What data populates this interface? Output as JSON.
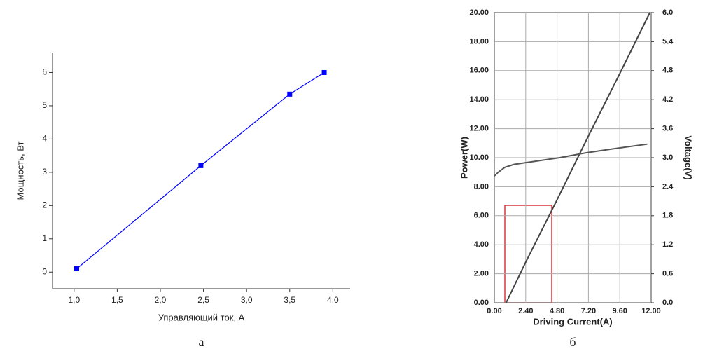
{
  "chart_data": [
    {
      "type": "line",
      "caption": "а",
      "xlabel": "Управляющий ток, А",
      "ylabel": "Мощность, Вт",
      "x": [
        1.03,
        2.47,
        3.5,
        3.9
      ],
      "values": [
        0.1,
        3.2,
        5.35,
        6.0
      ],
      "color": "#0000ff",
      "xlim": [
        0.75,
        4.2
      ],
      "ylim": [
        -0.5,
        6.6
      ],
      "xticks": [
        {
          "value": 1.0,
          "label": "1,0"
        },
        {
          "value": 1.5,
          "label": "1,5"
        },
        {
          "value": 2.0,
          "label": "2,0"
        },
        {
          "value": 2.5,
          "label": "2,5"
        },
        {
          "value": 3.0,
          "label": "3,0"
        },
        {
          "value": 3.5,
          "label": "3,5"
        },
        {
          "value": 4.0,
          "label": "4,0"
        }
      ],
      "yticks": [
        0,
        1,
        2,
        3,
        4,
        5,
        6
      ],
      "grid": false,
      "markers": true
    },
    {
      "type": "line",
      "caption": "б",
      "xlabel": "Driving Current(A)",
      "ylabel": "Power(W)",
      "y2label": "Voltage(V)",
      "xlim": [
        0,
        12
      ],
      "ylim": [
        0,
        20
      ],
      "y2lim": [
        0,
        6
      ],
      "xticks": [
        {
          "value": 0,
          "label": "0.00"
        },
        {
          "value": 2.4,
          "label": "2.40"
        },
        {
          "value": 4.8,
          "label": "4.80"
        },
        {
          "value": 7.2,
          "label": "7.20"
        },
        {
          "value": 9.6,
          "label": "9.60"
        },
        {
          "value": 12,
          "label": "12.00"
        }
      ],
      "yticks": [
        {
          "value": 0,
          "label": "0.00"
        },
        {
          "value": 2,
          "label": "2.00"
        },
        {
          "value": 4,
          "label": "4.00"
        },
        {
          "value": 6,
          "label": "6.00"
        },
        {
          "value": 8,
          "label": "8.00"
        },
        {
          "value": 10,
          "label": "10.00"
        },
        {
          "value": 12,
          "label": "12.00"
        },
        {
          "value": 14,
          "label": "14.00"
        },
        {
          "value": 16,
          "label": "16.00"
        },
        {
          "value": 18,
          "label": "18.00"
        },
        {
          "value": 20,
          "label": "20.00"
        }
      ],
      "y2ticks": [
        {
          "value": 0,
          "label": "0.0"
        },
        {
          "value": 0.6,
          "label": "0.6"
        },
        {
          "value": 1.2,
          "label": "1.2"
        },
        {
          "value": 1.8,
          "label": "1.8"
        },
        {
          "value": 2.4,
          "label": "2.4"
        },
        {
          "value": 3.0,
          "label": "3.0"
        },
        {
          "value": 3.6,
          "label": "3.6"
        },
        {
          "value": 4.2,
          "label": "4.2"
        },
        {
          "value": 4.8,
          "label": "4.8"
        },
        {
          "value": 5.4,
          "label": "5.4"
        },
        {
          "value": 6.0,
          "label": "6.0"
        }
      ],
      "grid": true,
      "markers": false,
      "series": [
        {
          "x": [
            0.9,
            2.4,
            4.8,
            7.2,
            9.6,
            11.9
          ],
          "values": [
            0,
            2.8,
            7.1,
            11.5,
            15.8,
            20
          ],
          "color": "#444444"
        },
        {
          "x": [
            0,
            0.3,
            0.8,
            1.5,
            3,
            5,
            7,
            9,
            11.7
          ],
          "values": [
            2.62,
            2.7,
            2.8,
            2.86,
            2.92,
            3.0,
            3.1,
            3.18,
            3.28
          ],
          "color": "#555555",
          "axis": "y2"
        }
      ]
    }
  ]
}
